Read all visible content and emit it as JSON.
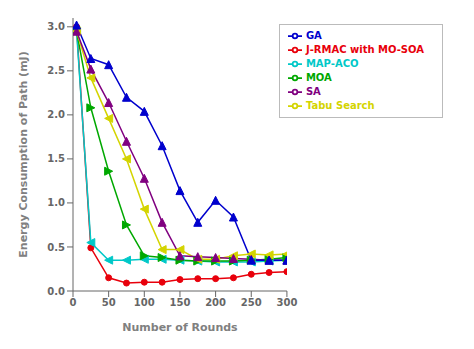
{
  "chart_data": {
    "type": "line",
    "xlabel": "Number of Rounds",
    "ylabel": "Energy Consumption of Path (mJ)",
    "x": [
      5,
      25,
      50,
      75,
      100,
      125,
      150,
      175,
      200,
      225,
      250,
      275,
      300
    ],
    "series": [
      {
        "name": "J-RMAC with MO-SOA",
        "color": "#e8000b",
        "marker": "circle",
        "values": [
          3.0,
          0.49,
          0.15,
          0.09,
          0.1,
          0.1,
          0.13,
          0.14,
          0.14,
          0.15,
          0.19,
          0.21,
          0.22
        ]
      },
      {
        "name": "MAP-ACO",
        "color": "#00c8c8",
        "marker": "triangle-left",
        "values": [
          2.95,
          0.55,
          0.35,
          0.35,
          0.36,
          0.36,
          0.35,
          0.34,
          0.33,
          0.33,
          0.33,
          0.34,
          0.35
        ]
      },
      {
        "name": "MOA",
        "color": "#00a800",
        "marker": "triangle-right",
        "values": [
          2.95,
          2.08,
          1.36,
          0.75,
          0.4,
          0.38,
          0.35,
          0.34,
          0.34,
          0.34,
          0.35,
          0.36,
          0.38
        ]
      },
      {
        "name": "Tabu Search",
        "color": "#d4d400",
        "marker": "triangle-left",
        "values": [
          2.95,
          2.42,
          1.96,
          1.5,
          0.93,
          0.47,
          0.47,
          0.36,
          0.36,
          0.4,
          0.42,
          0.41,
          0.42
        ]
      },
      {
        "name": "SA",
        "color": "#800080",
        "marker": "triangle-up",
        "values": [
          2.95,
          2.52,
          2.14,
          1.7,
          1.28,
          0.78,
          0.4,
          0.39,
          0.38,
          0.37,
          0.36,
          0.35,
          0.35
        ]
      },
      {
        "name": "GA",
        "color": "#0000cd",
        "marker": "triangle-up",
        "values": [
          3.02,
          2.64,
          2.57,
          2.2,
          2.04,
          1.65,
          1.14,
          0.78,
          1.03,
          0.84,
          0.35,
          0.35,
          0.35
        ]
      }
    ],
    "xlim": [
      0,
      300
    ],
    "ylim": [
      0.0,
      3.1
    ],
    "xticks": [
      0,
      50,
      100,
      150,
      200,
      250,
      300
    ],
    "yticks": [
      {
        "value": 0.0,
        "label": "0.0"
      },
      {
        "value": 0.5,
        "label": "0.5"
      },
      {
        "value": 1.0,
        "label": "1.0"
      },
      {
        "value": 1.5,
        "label": "1.5"
      },
      {
        "value": 2.0,
        "label": "2.0"
      },
      {
        "value": 2.5,
        "label": "2.5"
      },
      {
        "value": 3.0,
        "label": "3.0"
      }
    ],
    "legend": "upper right",
    "grid": false
  }
}
